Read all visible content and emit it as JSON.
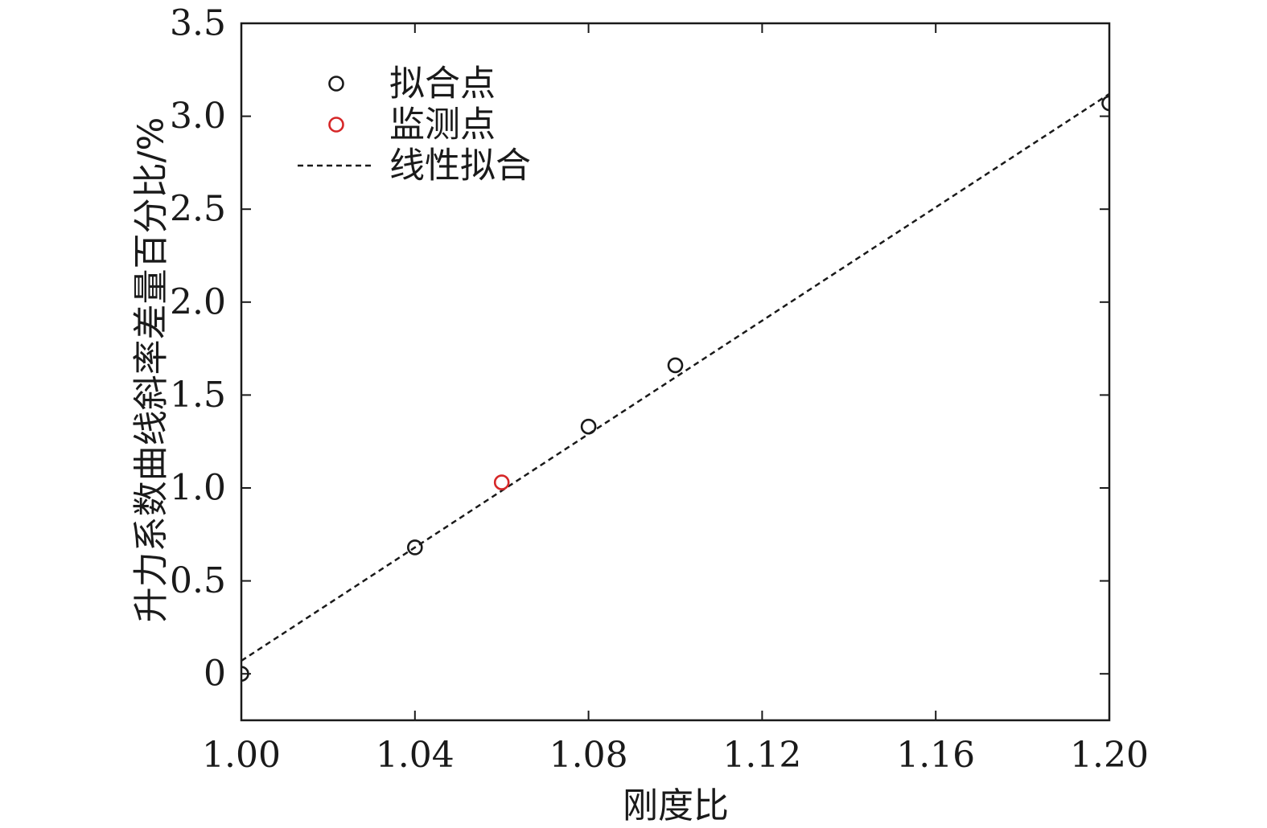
{
  "chart_data": {
    "type": "scatter",
    "xlabel": "刚度比",
    "ylabel": "升力系数曲线斜率差量百分比/%",
    "xlim": [
      1.0,
      1.2
    ],
    "ylim": [
      -0.25,
      3.5
    ],
    "x_ticks": [
      1.0,
      1.04,
      1.08,
      1.12,
      1.16,
      1.2
    ],
    "x_tick_labels": [
      "1.00",
      "1.04",
      "1.08",
      "1.12",
      "1.16",
      "1.20"
    ],
    "y_ticks": [
      0,
      0.5,
      1.0,
      1.5,
      2.0,
      2.5,
      3.0,
      3.5
    ],
    "y_tick_labels": [
      "0",
      "0.5",
      "1.0",
      "1.5",
      "2.0",
      "2.5",
      "3.0",
      "3.5"
    ],
    "grid": false,
    "legend_position": "top-left",
    "series": [
      {
        "name": "拟合点",
        "kind": "scatter",
        "marker": "open-circle",
        "color": "#1a1a1a",
        "x": [
          1.0,
          1.04,
          1.08,
          1.1,
          1.2
        ],
        "y": [
          0.0,
          0.68,
          1.33,
          1.66,
          3.07
        ]
      },
      {
        "name": "监测点",
        "kind": "scatter",
        "marker": "open-circle",
        "color": "#d62728",
        "x": [
          1.06
        ],
        "y": [
          1.03
        ]
      },
      {
        "name": "线性拟合",
        "kind": "line",
        "style": "dashed",
        "color": "#1a1a1a",
        "x": [
          1.0,
          1.2
        ],
        "y": [
          0.07,
          3.12
        ]
      }
    ]
  }
}
